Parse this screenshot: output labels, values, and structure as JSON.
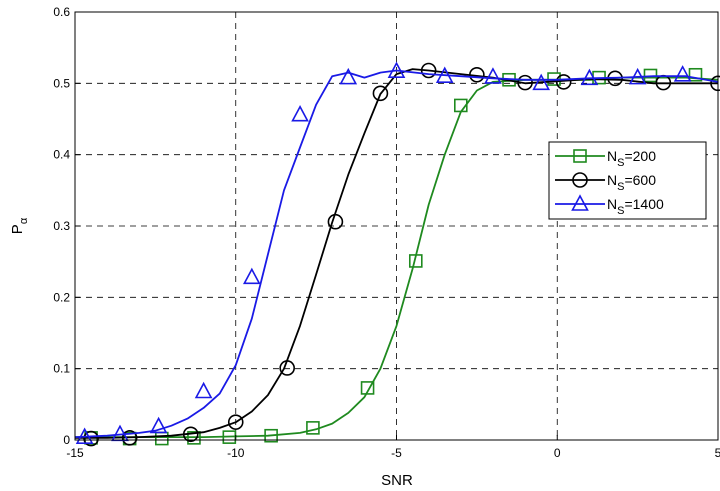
{
  "chart_data": {
    "type": "line",
    "xlabel": "SNR",
    "ylabel": {
      "main": "P",
      "sub": "α"
    },
    "xlim": [
      -15,
      5
    ],
    "ylim": [
      0,
      0.6
    ],
    "xticks": [
      -15,
      -10,
      -5,
      0,
      5
    ],
    "yticks": [
      0,
      0.1,
      0.2,
      0.3,
      0.4,
      0.5,
      0.6
    ],
    "xtick_labels": [
      "-15",
      "-10",
      "-5",
      "0",
      "5"
    ],
    "ytick_labels": [
      "0",
      "0.1",
      "0.2",
      "0.3",
      "0.4",
      "0.5",
      "0.6"
    ],
    "grid": true,
    "legend_position": "right",
    "series": [
      {
        "name": "N_S=200",
        "label_main": "N",
        "label_sub": "S",
        "label_rest": "=200",
        "color": "#1f8a1f",
        "marker": "square",
        "line": [
          [
            -15,
            0.004
          ],
          [
            -14,
            0.004
          ],
          [
            -13,
            0.004
          ],
          [
            -12,
            0.004
          ],
          [
            -11,
            0.004
          ],
          [
            -10,
            0.005
          ],
          [
            -9,
            0.006
          ],
          [
            -8,
            0.01
          ],
          [
            -7.5,
            0.015
          ],
          [
            -7,
            0.023
          ],
          [
            -6.5,
            0.038
          ],
          [
            -6,
            0.06
          ],
          [
            -5.5,
            0.1
          ],
          [
            -5,
            0.16
          ],
          [
            -4.5,
            0.24
          ],
          [
            -4,
            0.33
          ],
          [
            -3.5,
            0.4
          ],
          [
            -3,
            0.46
          ],
          [
            -2.5,
            0.49
          ],
          [
            -2,
            0.502
          ],
          [
            -1,
            0.505
          ],
          [
            0,
            0.505
          ],
          [
            1,
            0.505
          ],
          [
            2,
            0.508
          ],
          [
            3,
            0.508
          ],
          [
            4,
            0.508
          ],
          [
            5,
            0.505
          ]
        ],
        "markers": [
          [
            -14.5,
            0.003
          ],
          [
            -13.3,
            0.002
          ],
          [
            -12.3,
            0.002
          ],
          [
            -11.3,
            0.003
          ],
          [
            -10.2,
            0.004
          ],
          [
            -8.9,
            0.006
          ],
          [
            -7.6,
            0.017
          ],
          [
            -5.9,
            0.073
          ],
          [
            -4.4,
            0.251
          ],
          [
            -3,
            0.469
          ],
          [
            -1.5,
            0.505
          ],
          [
            -0.1,
            0.506
          ],
          [
            1.3,
            0.508
          ],
          [
            2.9,
            0.511
          ],
          [
            4.3,
            0.512
          ]
        ]
      },
      {
        "name": "N_S=600",
        "label_main": "N",
        "label_sub": "S",
        "label_rest": "=600",
        "color": "#000000",
        "marker": "circle",
        "line": [
          [
            -15,
            0.003
          ],
          [
            -14,
            0.003
          ],
          [
            -13,
            0.004
          ],
          [
            -12,
            0.006
          ],
          [
            -11,
            0.011
          ],
          [
            -10.5,
            0.017
          ],
          [
            -10,
            0.025
          ],
          [
            -9.5,
            0.04
          ],
          [
            -9,
            0.063
          ],
          [
            -8.5,
            0.1
          ],
          [
            -8,
            0.16
          ],
          [
            -7.5,
            0.232
          ],
          [
            -7,
            0.305
          ],
          [
            -6.5,
            0.372
          ],
          [
            -6,
            0.43
          ],
          [
            -5.5,
            0.485
          ],
          [
            -5,
            0.513
          ],
          [
            -4.5,
            0.52
          ],
          [
            -4,
            0.518
          ],
          [
            -3,
            0.513
          ],
          [
            -2,
            0.508
          ],
          [
            -1,
            0.5
          ],
          [
            0,
            0.503
          ],
          [
            1,
            0.506
          ],
          [
            2,
            0.505
          ],
          [
            3,
            0.5
          ],
          [
            4,
            0.5
          ],
          [
            5,
            0.5
          ]
        ],
        "markers": [
          [
            -14.5,
            0.002
          ],
          [
            -13.3,
            0.003
          ],
          [
            -11.4,
            0.008
          ],
          [
            -10,
            0.025
          ],
          [
            -8.4,
            0.101
          ],
          [
            -6.9,
            0.306
          ],
          [
            -5.5,
            0.486
          ],
          [
            -4,
            0.518
          ],
          [
            -2.5,
            0.512
          ],
          [
            -1,
            0.501
          ],
          [
            0.2,
            0.502
          ],
          [
            1.8,
            0.507
          ],
          [
            3.3,
            0.501
          ],
          [
            5,
            0.5
          ]
        ]
      },
      {
        "name": "N_S=1400",
        "label_main": "N",
        "label_sub": "S",
        "label_rest": "=1400",
        "color": "#1a1ae6",
        "marker": "triangle",
        "line": [
          [
            -15,
            0.004
          ],
          [
            -14,
            0.006
          ],
          [
            -13,
            0.01
          ],
          [
            -12.5,
            0.013
          ],
          [
            -12,
            0.02
          ],
          [
            -11.5,
            0.03
          ],
          [
            -11,
            0.045
          ],
          [
            -10.5,
            0.065
          ],
          [
            -10,
            0.105
          ],
          [
            -9.5,
            0.17
          ],
          [
            -9,
            0.26
          ],
          [
            -8.5,
            0.35
          ],
          [
            -8,
            0.41
          ],
          [
            -7.5,
            0.47
          ],
          [
            -7,
            0.51
          ],
          [
            -6.5,
            0.515
          ],
          [
            -6,
            0.508
          ],
          [
            -5.5,
            0.515
          ],
          [
            -5,
            0.518
          ],
          [
            -4,
            0.513
          ],
          [
            -3,
            0.51
          ],
          [
            -2,
            0.507
          ],
          [
            -1,
            0.505
          ],
          [
            0,
            0.505
          ],
          [
            1,
            0.507
          ],
          [
            2,
            0.508
          ],
          [
            3,
            0.51
          ],
          [
            4,
            0.51
          ],
          [
            5,
            0.502
          ]
        ],
        "markers": [
          [
            -14.7,
            0.004
          ],
          [
            -13.6,
            0.008
          ],
          [
            -12.4,
            0.019
          ],
          [
            -11,
            0.068
          ],
          [
            -9.5,
            0.228
          ],
          [
            -8,
            0.456
          ],
          [
            -6.5,
            0.508
          ],
          [
            -5,
            0.517
          ],
          [
            -3.5,
            0.51
          ],
          [
            -2,
            0.509
          ],
          [
            -0.5,
            0.5
          ],
          [
            1,
            0.507
          ],
          [
            2.5,
            0.508
          ],
          [
            3.9,
            0.512
          ]
        ]
      }
    ]
  }
}
